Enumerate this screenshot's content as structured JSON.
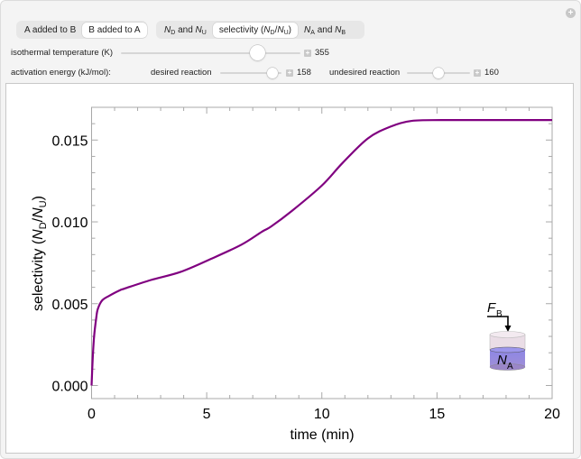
{
  "controls": {
    "mode_setter": {
      "options": [
        "A added to B",
        "B added to A"
      ],
      "selected": "B added to A"
    },
    "plot_setter": {
      "options": [
        {
          "main": "N",
          "sub": "D",
          "mid": " and ",
          "main2": "N",
          "sub2": "U"
        },
        {
          "label": "selectivity (",
          "main": "N",
          "sub": "D",
          "slash": "/",
          "main2": "N",
          "sub2": "U",
          "close": ")"
        },
        {
          "main": "N",
          "sub": "A",
          "mid": " and ",
          "main2": "N",
          "sub2": "B"
        }
      ],
      "selected": "selectivity (ND/NU)"
    },
    "temperature": {
      "label": "isothermal temperature (K)",
      "value": "355"
    },
    "activation_energy": {
      "label": "activation energy (kJ/mol):",
      "desired": {
        "label": "desired reaction",
        "value": "158"
      },
      "undesired": {
        "label": "undesired reaction",
        "value": "160"
      }
    },
    "plus_symbol": "+"
  },
  "chart_data": {
    "type": "line",
    "title": "",
    "xlabel": "time (min)",
    "ylabel": "selectivity (ND/NU)",
    "xlim": [
      0,
      20
    ],
    "ylim": [
      -0.0008,
      0.017
    ],
    "xticks": [
      "0",
      "5",
      "10",
      "15",
      "20"
    ],
    "yticks": [
      "0.000",
      "0.005",
      "0.010",
      "0.015"
    ],
    "grid": false,
    "series": [
      {
        "name": "selectivity",
        "color": "#800080",
        "x": [
          0,
          0.05,
          0.11,
          0.2,
          0.27,
          0.46,
          0.79,
          1.24,
          1.43,
          2.56,
          3.86,
          5.16,
          6.5,
          7.4,
          7.8,
          8.7,
          10.0,
          10.9,
          12.0,
          13.0,
          13.9,
          15.2,
          17.0,
          20.0
        ],
        "values": [
          0,
          0.00167,
          0.003,
          0.0041,
          0.00467,
          0.0052,
          0.0055,
          0.00583,
          0.00592,
          0.00644,
          0.00694,
          0.00772,
          0.0086,
          0.0094,
          0.00972,
          0.01067,
          0.01222,
          0.0136,
          0.0151,
          0.01583,
          0.01617,
          0.01622,
          0.01622,
          0.01622
        ]
      }
    ],
    "inset": {
      "feed_label": "F",
      "feed_sub": "B",
      "tank_label": "N",
      "tank_sub": "A"
    }
  }
}
